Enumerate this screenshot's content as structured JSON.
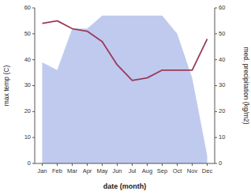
{
  "chart_data": {
    "type": "line",
    "xlabel": "date (month)",
    "ylabel": "max temp (C)",
    "y2label": "med. precipitation (kg/m2)",
    "categories": [
      "Jan",
      "Feb",
      "Mar",
      "Apr",
      "May",
      "Jun",
      "Jul",
      "Aug",
      "Sep",
      "Oct",
      "Nov",
      "Dec"
    ],
    "series": [
      {
        "type": "area",
        "axis": "y2",
        "color": "#aab8e8",
        "values": [
          39,
          36,
          52,
          52,
          57,
          57,
          57,
          57,
          57,
          50,
          33,
          3
        ]
      },
      {
        "type": "line",
        "color": "#9b3a5a",
        "values": [
          54,
          55,
          52,
          51,
          47,
          38,
          32,
          33,
          36,
          36,
          36,
          48
        ]
      }
    ],
    "ylim": [
      0,
      60
    ],
    "yticks": [
      0,
      10,
      20,
      30,
      40,
      50,
      60
    ],
    "y2lim": [
      0,
      60
    ],
    "y2ticks": [
      0,
      10,
      20,
      30,
      40,
      50,
      60
    ]
  }
}
